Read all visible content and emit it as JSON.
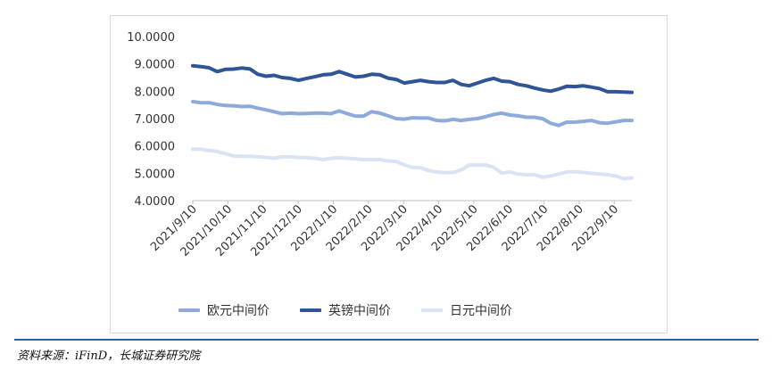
{
  "chart_data": {
    "type": "line",
    "y_ticks": [
      "10.0000",
      "9.0000",
      "8.0000",
      "7.0000",
      "6.0000",
      "5.0000",
      "4.0000"
    ],
    "ylim": [
      4,
      10
    ],
    "x_ticks": [
      "2021/9/10",
      "2021/10/10",
      "2021/11/10",
      "2021/12/10",
      "2022/1/10",
      "2022/2/10",
      "2022/3/10",
      "2022/4/10",
      "2022/5/10",
      "2022/6/10",
      "2022/7/10",
      "2022/8/10",
      "2022/9/10"
    ],
    "grid": false,
    "legend_position": "bottom",
    "series": [
      {
        "name": "欧元中间价",
        "color": "#8eaadb",
        "values": [
          7.62,
          7.58,
          7.58,
          7.52,
          7.48,
          7.47,
          7.44,
          7.45,
          7.38,
          7.32,
          7.25,
          7.18,
          7.2,
          7.18,
          7.19,
          7.2,
          7.2,
          7.18,
          7.28,
          7.18,
          7.09,
          7.09,
          7.25,
          7.2,
          7.1,
          7.0,
          6.98,
          7.03,
          7.02,
          7.02,
          6.93,
          6.92,
          6.97,
          6.93,
          6.97,
          7.0,
          7.07,
          7.15,
          7.2,
          7.13,
          7.1,
          7.05,
          7.05,
          7.0,
          6.83,
          6.75,
          6.87,
          6.87,
          6.9,
          6.93,
          6.85,
          6.83,
          6.88,
          6.93,
          6.93
        ]
      },
      {
        "name": "英镑中间价",
        "color": "#2f5597",
        "values": [
          8.93,
          8.9,
          8.86,
          8.72,
          8.8,
          8.81,
          8.85,
          8.82,
          8.62,
          8.55,
          8.58,
          8.5,
          8.47,
          8.4,
          8.47,
          8.53,
          8.6,
          8.62,
          8.72,
          8.62,
          8.52,
          8.55,
          8.62,
          8.6,
          8.48,
          8.43,
          8.3,
          8.35,
          8.4,
          8.35,
          8.32,
          8.32,
          8.4,
          8.25,
          8.2,
          8.3,
          8.4,
          8.47,
          8.37,
          8.35,
          8.25,
          8.2,
          8.12,
          8.05,
          8.0,
          8.08,
          8.18,
          8.17,
          8.2,
          8.15,
          8.1,
          7.98,
          7.98,
          7.97,
          7.96
        ]
      },
      {
        "name": "日元中间价",
        "color": "#dae3f3",
        "values": [
          5.88,
          5.88,
          5.83,
          5.8,
          5.72,
          5.63,
          5.62,
          5.62,
          5.6,
          5.58,
          5.55,
          5.6,
          5.6,
          5.58,
          5.57,
          5.55,
          5.5,
          5.55,
          5.57,
          5.55,
          5.53,
          5.5,
          5.5,
          5.5,
          5.45,
          5.43,
          5.3,
          5.22,
          5.2,
          5.1,
          5.05,
          5.02,
          5.03,
          5.12,
          5.3,
          5.3,
          5.3,
          5.22,
          5.0,
          5.05,
          4.97,
          4.95,
          4.95,
          4.85,
          4.9,
          4.97,
          5.05,
          5.05,
          5.03,
          5.0,
          4.97,
          4.95,
          4.9,
          4.8,
          4.83
        ]
      }
    ]
  },
  "legend": {
    "items": [
      {
        "label": "欧元中间价",
        "color": "#8eaadb"
      },
      {
        "label": "英镑中间价",
        "color": "#2f5597"
      },
      {
        "label": "日元中间价",
        "color": "#dae3f3"
      }
    ]
  },
  "source_text": "资料来源：iFinD，长城证券研究院"
}
